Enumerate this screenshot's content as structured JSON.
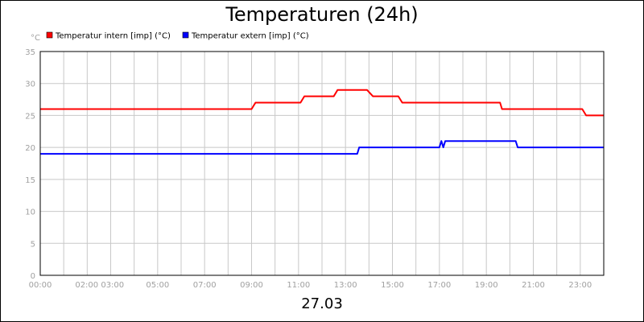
{
  "chart_data": {
    "type": "line",
    "title": "Temperaturen (24h)",
    "xlabel": "27.03",
    "ylabel": "°C",
    "ylim": [
      0,
      35
    ],
    "yticks": [
      0,
      5,
      10,
      15,
      20,
      25,
      30,
      35
    ],
    "xlim": [
      "00:00",
      "24:00"
    ],
    "xtick_labels": [
      "00:00",
      "02:00 03:00",
      "05:00",
      "07:00",
      "09:00",
      "11:00",
      "13:00",
      "15:00",
      "17:00",
      "19:00",
      "21:00",
      "23:00"
    ],
    "grid": true,
    "legend_position": "top-left",
    "series": [
      {
        "name": "Temperatur intern [imp] (°C)",
        "color": "#ff0000",
        "points": [
          [
            "00:00",
            26
          ],
          [
            "09:00",
            26
          ],
          [
            "09:10",
            27
          ],
          [
            "11:05",
            27
          ],
          [
            "11:15",
            28
          ],
          [
            "12:30",
            28
          ],
          [
            "12:40",
            29
          ],
          [
            "13:55",
            29
          ],
          [
            "14:10",
            28
          ],
          [
            "15:15",
            28
          ],
          [
            "15:25",
            27
          ],
          [
            "19:35",
            27
          ],
          [
            "19:40",
            26
          ],
          [
            "23:05",
            26
          ],
          [
            "23:15",
            25
          ],
          [
            "24:00",
            25
          ]
        ]
      },
      {
        "name": "Temperatur extern [imp] (°C)",
        "color": "#0000ff",
        "points": [
          [
            "00:00",
            19
          ],
          [
            "13:30",
            19
          ],
          [
            "13:35",
            20
          ],
          [
            "17:00",
            20
          ],
          [
            "17:05",
            21
          ],
          [
            "17:10",
            20
          ],
          [
            "17:15",
            21
          ],
          [
            "20:15",
            21
          ],
          [
            "20:20",
            20
          ],
          [
            "24:00",
            20
          ]
        ]
      }
    ]
  }
}
